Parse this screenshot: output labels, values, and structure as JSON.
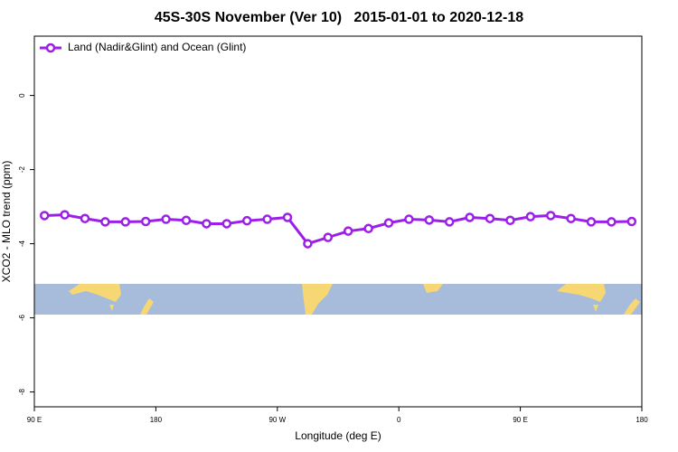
{
  "chart_data": {
    "type": "line",
    "title": "45S-30S November (Ver 10)   2015-01-01 to 2020-12-18",
    "x_label": "Longitude (deg E)",
    "y_label": "XCO2 - MLO trend (ppm)",
    "xlim": [
      90,
      540
    ],
    "xticks": [
      {
        "value": 90,
        "label": "90 E"
      },
      {
        "value": 180,
        "label": "180"
      },
      {
        "value": 270,
        "label": "90 W"
      },
      {
        "value": 360,
        "label": "0"
      },
      {
        "value": 450,
        "label": "90 E"
      },
      {
        "value": 540,
        "label": "180"
      }
    ],
    "ylim": [
      -8.4,
      1.6
    ],
    "yticks": [
      0,
      -2,
      -4,
      -6,
      -8
    ],
    "x": [
      97.5,
      112.5,
      127.5,
      142.5,
      157.5,
      172.5,
      187.5,
      202.5,
      217.5,
      232.5,
      247.5,
      262.5,
      277.5,
      292.5,
      307.5,
      322.5,
      337.5,
      352.5,
      367.5,
      382.5,
      397.5,
      412.5,
      427.5,
      442.5,
      457.5,
      472.5,
      487.5,
      502.5,
      517.5,
      532.5
    ],
    "series": [
      {
        "name": "Land (Nadir&Glint) and Ocean (Glint)",
        "color": "#9b1fe8",
        "values": [
          -3.24,
          -3.22,
          -3.32,
          -3.41,
          -3.41,
          -3.4,
          -3.34,
          -3.37,
          -3.46,
          -3.46,
          -3.38,
          -3.34,
          -3.29,
          -4.0,
          -3.83,
          -3.66,
          -3.59,
          -3.44,
          -3.34,
          -3.36,
          -3.41,
          -3.29,
          -3.32,
          -3.37,
          -3.27,
          -3.24,
          -3.32,
          -3.41,
          -3.41,
          -3.4
        ]
      }
    ]
  }
}
